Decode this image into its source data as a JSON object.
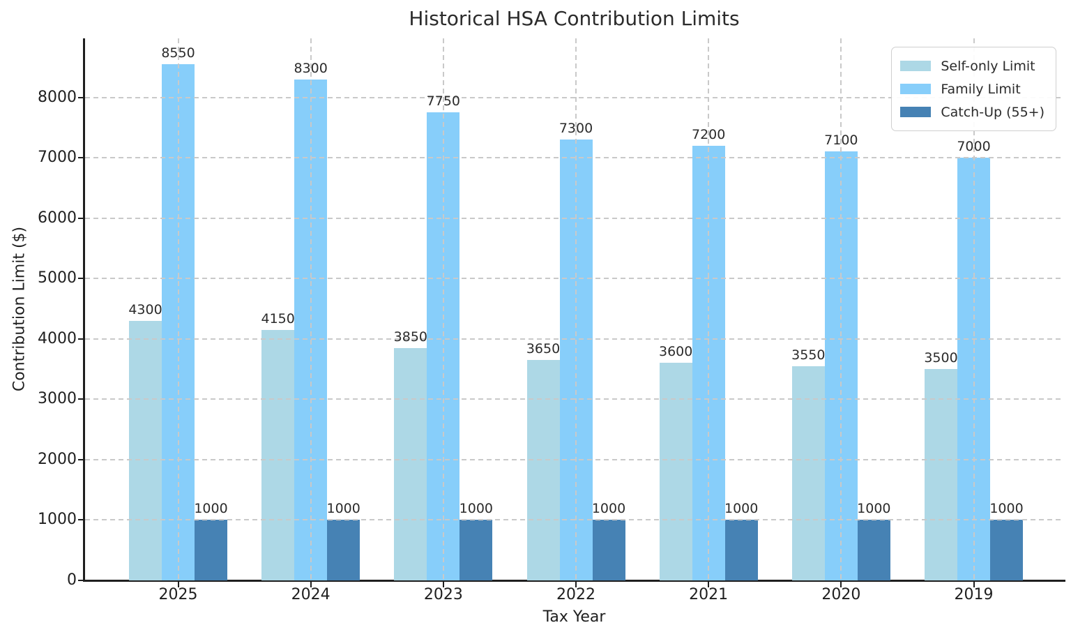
{
  "chart_data": {
    "type": "bar",
    "title": "Historical HSA Contribution Limits",
    "xlabel": "Tax Year",
    "ylabel": "Contribution Limit ($)",
    "categories": [
      "2025",
      "2024",
      "2023",
      "2022",
      "2021",
      "2020",
      "2019"
    ],
    "series": [
      {
        "name": "Self-only Limit",
        "color": "#ADD8E6",
        "values": [
          4300,
          4150,
          3850,
          3650,
          3600,
          3550,
          3500
        ]
      },
      {
        "name": "Family Limit",
        "color": "#87CEFA",
        "values": [
          8550,
          8300,
          7750,
          7300,
          7200,
          7100,
          7000
        ]
      },
      {
        "name": "Catch-Up (55+)",
        "color": "#4682B4",
        "values": [
          1000,
          1000,
          1000,
          1000,
          1000,
          1000,
          1000
        ]
      }
    ],
    "ylim": [
      0,
      8977
    ],
    "yticks": [
      0,
      1000,
      2000,
      3000,
      4000,
      5000,
      6000,
      7000,
      8000
    ],
    "grid": "dashed gray, horizontal and vertical, drawn above bars",
    "legend_position": "upper right",
    "bar_value_labels": true
  }
}
